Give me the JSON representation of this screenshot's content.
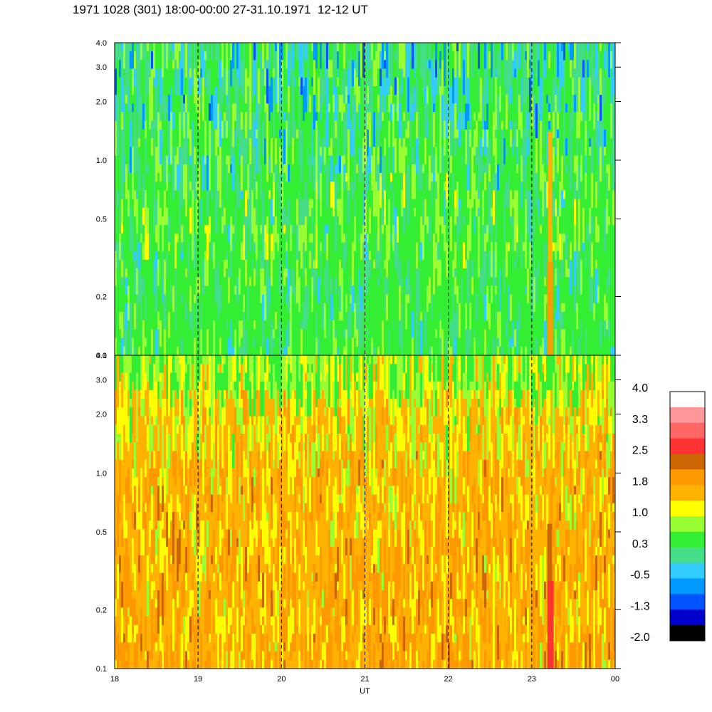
{
  "title": "1971 1028 (301) 18:00-00:00 27-31.10.1971  12-12 UT",
  "chart_data": {
    "type": "heatmap",
    "xlabel": "UT",
    "x_ticks": [
      "18",
      "19",
      "20",
      "21",
      "22",
      "23",
      "00"
    ],
    "x_range": [
      18,
      24
    ],
    "dashed_hours": [
      19,
      20,
      21,
      22,
      23
    ],
    "y_scale": "log",
    "y_range": [
      0.1,
      4.0
    ],
    "y_ticks": [
      "0.1",
      "0.2",
      "0.5",
      "1.0",
      "2.0",
      "3.0",
      "4.0"
    ],
    "panels": [
      {
        "name": "upper",
        "dominant_levels": [
          "0.3",
          "1.0",
          "-0.5"
        ],
        "notes": "mostly green with cyan/blue speckle at high frequencies; orange streak near 23.2 UT"
      },
      {
        "name": "lower",
        "dominant_levels": [
          "1.8",
          "1.0",
          "2.5"
        ],
        "notes": "mostly orange/yellow; red streak near 23.2 UT below 0.5"
      }
    ],
    "colorbar": {
      "labels": [
        "4.0",
        "3.3",
        "2.5",
        "1.8",
        "1.0",
        "0.3",
        "-0.5",
        "-1.3",
        "-2.0"
      ],
      "colors": [
        "#ffffff",
        "#ff9999",
        "#ff6666",
        "#ff3333",
        "#cc6600",
        "#ff9900",
        "#ffb300",
        "#ffff00",
        "#99ff33",
        "#33ee33",
        "#44dd88",
        "#33ccff",
        "#0099ff",
        "#0055ff",
        "#0000cc",
        "#000000"
      ]
    }
  }
}
